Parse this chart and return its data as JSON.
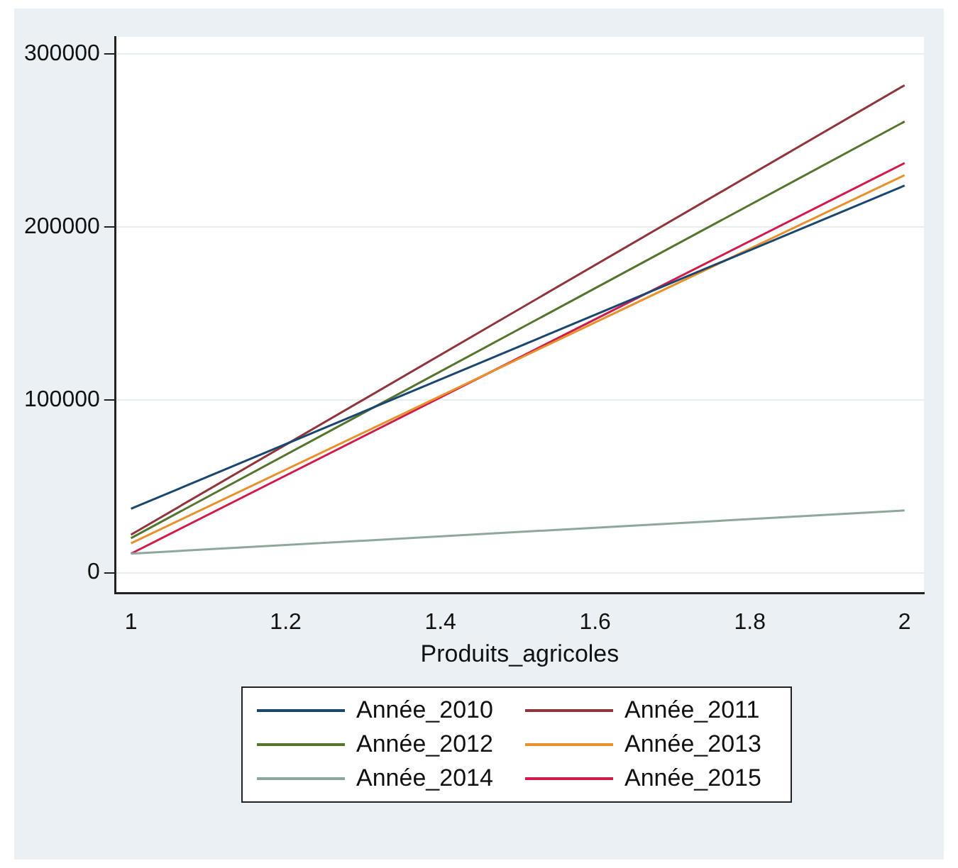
{
  "chart_data": {
    "type": "line",
    "xlabel": "Produits_agricoles",
    "x": [
      1,
      2
    ],
    "xlim": [
      0.98,
      2.025
    ],
    "xticks": [
      1,
      1.2,
      1.4,
      1.6,
      1.8,
      2
    ],
    "ylim": [
      -12000,
      310000
    ],
    "yticks": [
      0,
      100000,
      200000,
      300000
    ],
    "grid": "y",
    "legend": "bottom",
    "marker": "none",
    "line_style": "solid",
    "series": [
      {
        "name": "Année_2010",
        "color": "#1a476f",
        "values": [
          37000,
          224000
        ]
      },
      {
        "name": "Année_2011",
        "color": "#90353b",
        "values": [
          22000,
          282000
        ]
      },
      {
        "name": "Année_2012",
        "color": "#55752f",
        "values": [
          20000,
          261000
        ]
      },
      {
        "name": "Année_2013",
        "color": "#e8902a",
        "values": [
          17000,
          230000
        ]
      },
      {
        "name": "Année_2014",
        "color": "#8ea89c",
        "values": [
          11000,
          36000
        ]
      },
      {
        "name": "Année_2015",
        "color": "#d11a4a",
        "values": [
          11000,
          237000
        ]
      }
    ]
  }
}
